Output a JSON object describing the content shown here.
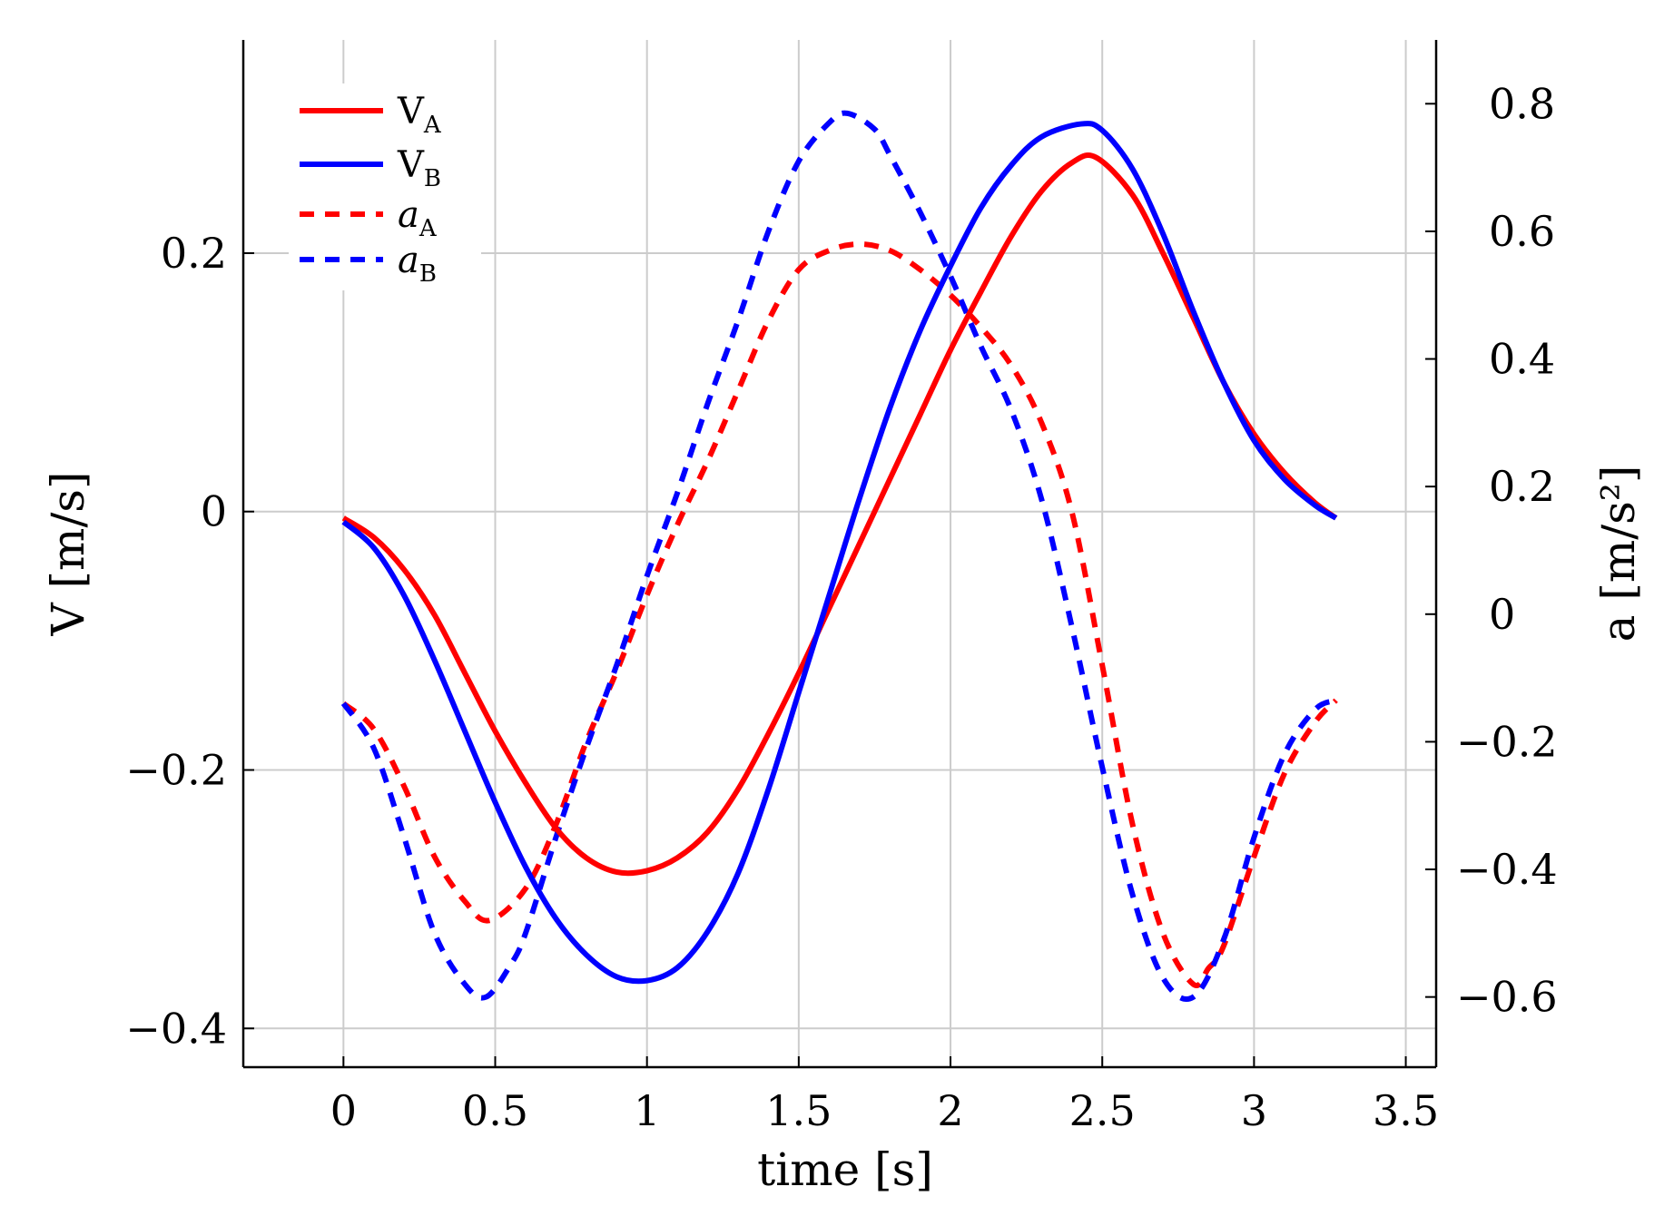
{
  "chart_data": {
    "type": "line",
    "xlabel": "time [s]",
    "ylabel_left": "V [m/s]",
    "ylabel_right": "a [m/s²]",
    "xlim": [
      -0.33,
      3.6
    ],
    "ylim_left": [
      -0.43,
      0.365
    ],
    "ylim_right": [
      -0.71,
      0.9
    ],
    "x_ticks": [
      0,
      0.5,
      1,
      1.5,
      2,
      2.5,
      3,
      3.5
    ],
    "x_tick_labels": [
      "0",
      "0.5",
      "1",
      "1.5",
      "2",
      "2.5",
      "3",
      "3.5"
    ],
    "y_left_ticks": [
      -0.4,
      -0.2,
      0,
      0.2
    ],
    "y_left_tick_labels": [
      "−0.4",
      "−0.2",
      "0",
      "0.2"
    ],
    "y_right_ticks": [
      -0.6,
      -0.4,
      -0.2,
      0,
      0.2,
      0.4,
      0.6,
      0.8
    ],
    "y_right_tick_labels": [
      "−0.6",
      "−0.4",
      "−0.2",
      "0",
      "0.2",
      "0.4",
      "0.6",
      "0.8"
    ],
    "grid": true,
    "legend_position": "top-left",
    "series": [
      {
        "name": "V_A",
        "label_main": "V",
        "label_sub": "A",
        "label_italic": false,
        "axis": "left",
        "color": "#ff0000",
        "dashed": false,
        "x": [
          0,
          0.1,
          0.2,
          0.3,
          0.4,
          0.5,
          0.6,
          0.7,
          0.8,
          0.9,
          1.0,
          1.1,
          1.2,
          1.3,
          1.4,
          1.5,
          1.6,
          1.7,
          1.8,
          1.9,
          2.0,
          2.1,
          2.2,
          2.3,
          2.4,
          2.48,
          2.6,
          2.7,
          2.8,
          2.9,
          3.0,
          3.1,
          3.2,
          3.27
        ],
        "y": [
          -0.005,
          -0.02,
          -0.045,
          -0.08,
          -0.125,
          -0.17,
          -0.21,
          -0.245,
          -0.268,
          -0.279,
          -0.278,
          -0.268,
          -0.248,
          -0.215,
          -0.172,
          -0.125,
          -0.075,
          -0.025,
          0.025,
          0.075,
          0.125,
          0.17,
          0.213,
          0.248,
          0.27,
          0.274,
          0.245,
          0.2,
          0.15,
          0.1,
          0.06,
          0.03,
          0.007,
          -0.005
        ]
      },
      {
        "name": "V_B",
        "label_main": "V",
        "label_sub": "B",
        "label_italic": false,
        "axis": "left",
        "color": "#0000ff",
        "dashed": false,
        "x": [
          0,
          0.1,
          0.2,
          0.3,
          0.4,
          0.5,
          0.6,
          0.7,
          0.8,
          0.9,
          1.0,
          1.1,
          1.2,
          1.3,
          1.4,
          1.5,
          1.6,
          1.7,
          1.8,
          1.9,
          2.0,
          2.1,
          2.2,
          2.3,
          2.43,
          2.5,
          2.6,
          2.7,
          2.8,
          2.9,
          3.0,
          3.1,
          3.2,
          3.27
        ],
        "y": [
          -0.008,
          -0.028,
          -0.065,
          -0.115,
          -0.17,
          -0.225,
          -0.275,
          -0.315,
          -0.343,
          -0.36,
          -0.363,
          -0.353,
          -0.325,
          -0.28,
          -0.215,
          -0.14,
          -0.065,
          0.01,
          0.08,
          0.14,
          0.19,
          0.235,
          0.268,
          0.29,
          0.3,
          0.295,
          0.265,
          0.215,
          0.155,
          0.1,
          0.055,
          0.025,
          0.005,
          -0.005
        ]
      },
      {
        "name": "a_A",
        "label_main": "a",
        "label_sub": "A",
        "label_italic": true,
        "axis": "right",
        "color": "#ff0000",
        "dashed": true,
        "x": [
          0,
          0.1,
          0.2,
          0.3,
          0.4,
          0.48,
          0.6,
          0.7,
          0.8,
          0.9,
          1.0,
          1.1,
          1.2,
          1.3,
          1.4,
          1.5,
          1.6,
          1.7,
          1.8,
          1.9,
          2.0,
          2.1,
          2.2,
          2.3,
          2.4,
          2.5,
          2.6,
          2.7,
          2.8,
          2.85,
          2.9,
          3.0,
          3.1,
          3.2,
          3.27
        ],
        "y": [
          -0.14,
          -0.18,
          -0.27,
          -0.38,
          -0.45,
          -0.48,
          -0.43,
          -0.33,
          -0.2,
          -0.09,
          0.03,
          0.14,
          0.24,
          0.35,
          0.46,
          0.54,
          0.57,
          0.58,
          0.57,
          0.54,
          0.5,
          0.45,
          0.39,
          0.3,
          0.16,
          -0.08,
          -0.33,
          -0.5,
          -0.58,
          -0.555,
          -0.52,
          -0.38,
          -0.25,
          -0.17,
          -0.135
        ]
      },
      {
        "name": "a_B",
        "label_main": "a",
        "label_sub": "B",
        "label_italic": true,
        "axis": "right",
        "color": "#0000ff",
        "dashed": true,
        "x": [
          0,
          0.1,
          0.2,
          0.3,
          0.4,
          0.47,
          0.55,
          0.6,
          0.7,
          0.8,
          0.9,
          1.0,
          1.1,
          1.2,
          1.3,
          1.4,
          1.5,
          1.6,
          1.66,
          1.75,
          1.8,
          1.9,
          2.0,
          2.1,
          2.2,
          2.3,
          2.4,
          2.5,
          2.6,
          2.7,
          2.8,
          2.9,
          3.0,
          3.1,
          3.2,
          3.27
        ],
        "y": [
          -0.14,
          -0.21,
          -0.35,
          -0.5,
          -0.58,
          -0.6,
          -0.55,
          -0.5,
          -0.35,
          -0.21,
          -0.08,
          0.06,
          0.19,
          0.33,
          0.46,
          0.6,
          0.71,
          0.77,
          0.785,
          0.76,
          0.72,
          0.63,
          0.53,
          0.42,
          0.32,
          0.18,
          -0.02,
          -0.24,
          -0.44,
          -0.57,
          -0.6,
          -0.51,
          -0.35,
          -0.22,
          -0.15,
          -0.135
        ]
      }
    ]
  }
}
